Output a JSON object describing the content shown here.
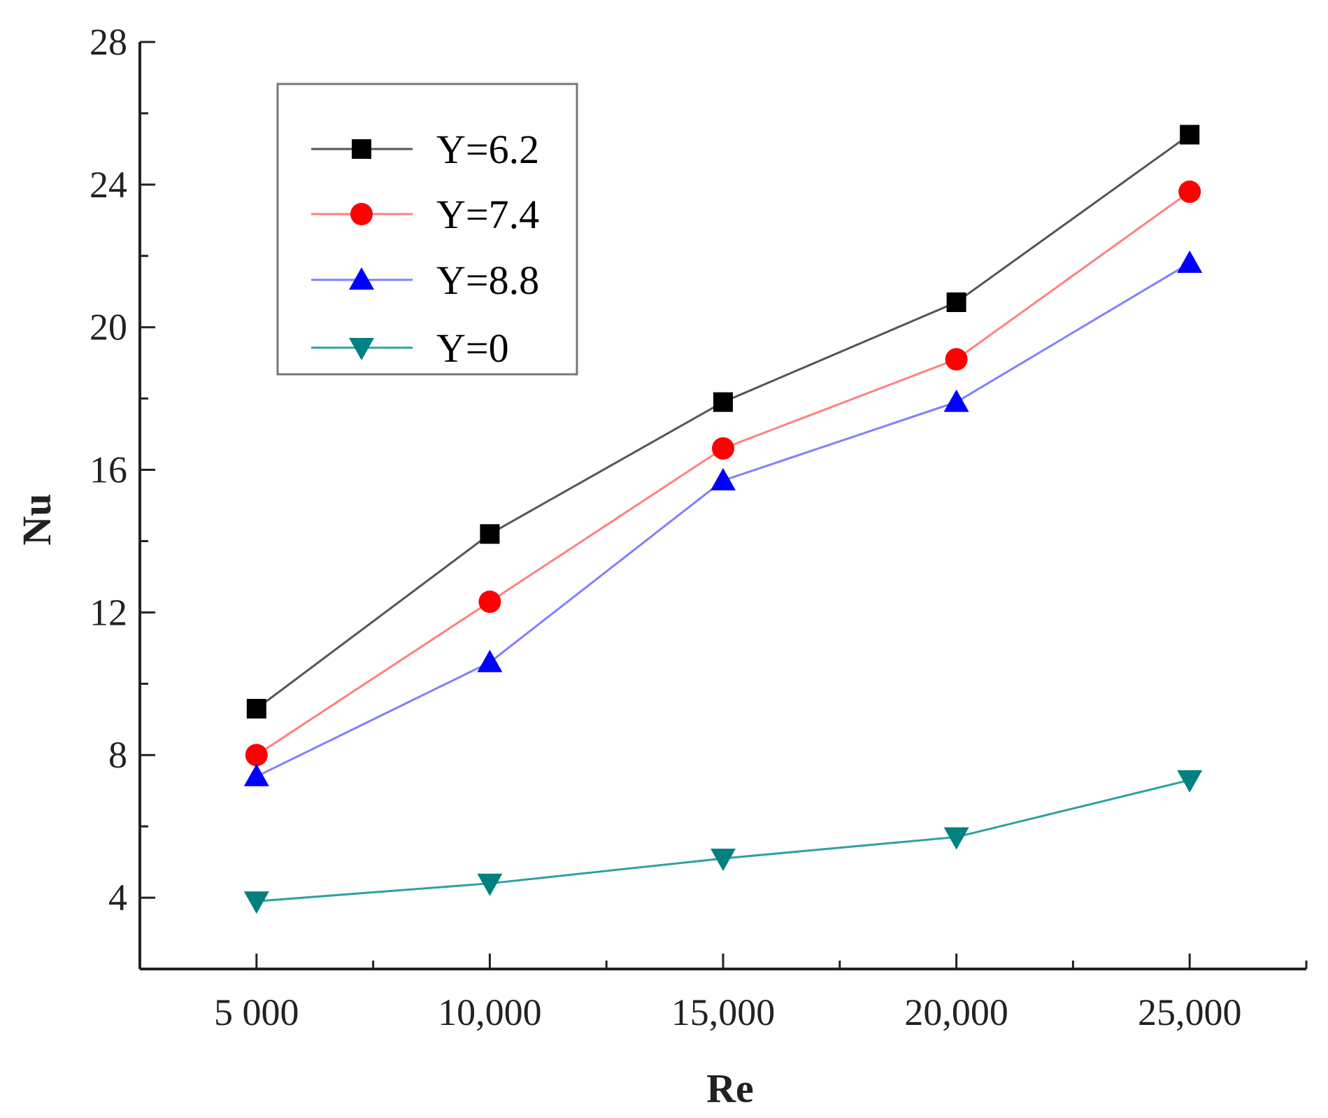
{
  "chart_data": {
    "type": "line",
    "title": "",
    "xlabel": "Re",
    "ylabel": "Nu",
    "x": [
      5000,
      10000,
      15000,
      20000,
      25000
    ],
    "x_tick_labels": [
      "5 000",
      "10,000",
      "15,000",
      "20,000",
      "25,000"
    ],
    "xlim": [
      2500,
      27500
    ],
    "ylim": [
      2,
      28
    ],
    "y_ticks": [
      4,
      8,
      12,
      16,
      20,
      24,
      28
    ],
    "y_tick_labels": [
      "4",
      "8",
      "12",
      "16",
      "20",
      "24",
      "28"
    ],
    "grid": false,
    "legend_position": "top-left",
    "series": [
      {
        "name": "Y=6.2",
        "marker": "square",
        "line_color": "#555555",
        "marker_color": "#000000",
        "values": [
          9.3,
          14.2,
          17.9,
          20.7,
          25.4
        ]
      },
      {
        "name": "Y=7.4",
        "marker": "circle",
        "line_color": "#ff8080",
        "marker_color": "#ff0000",
        "values": [
          8.0,
          12.3,
          16.6,
          19.1,
          23.8
        ]
      },
      {
        "name": "Y=8.8",
        "marker": "triangle-up",
        "line_color": "#8080ff",
        "marker_color": "#0000ff",
        "values": [
          7.4,
          10.6,
          15.7,
          17.9,
          21.8
        ]
      },
      {
        "name": "Y=0",
        "marker": "triangle-down",
        "line_color": "#30a0a0",
        "marker_color": "#008080",
        "values": [
          3.9,
          4.4,
          5.1,
          5.7,
          7.3
        ]
      }
    ]
  }
}
